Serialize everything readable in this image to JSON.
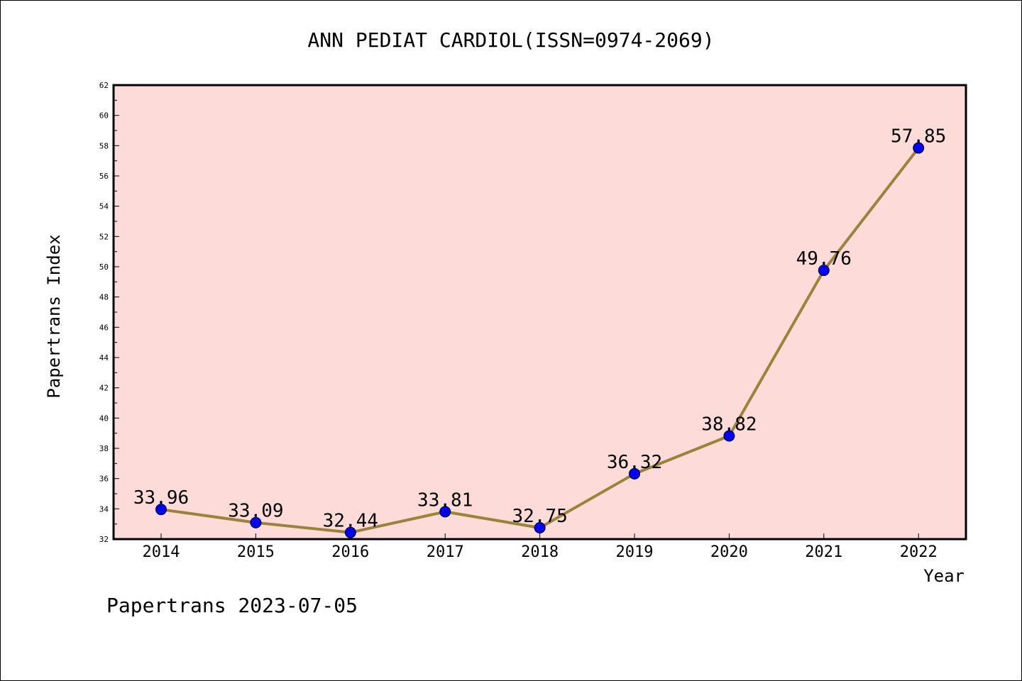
{
  "chart_data": {
    "type": "line",
    "title": "ANN PEDIAT CARDIOL(ISSN=0974-2069)",
    "xlabel": "Year",
    "ylabel": "Papertrans Index",
    "categories": [
      "2014",
      "2015",
      "2016",
      "2017",
      "2018",
      "2019",
      "2020",
      "2021",
      "2022"
    ],
    "series": [
      {
        "values": [
          33.96,
          33.09,
          32.44,
          33.81,
          32.75,
          36.32,
          38.82,
          49.76,
          57.85
        ],
        "labels": [
          "33.96",
          "33.09",
          "32.44",
          "33.81",
          "32.75",
          "36.32",
          "38.82",
          "49.76",
          "57.85"
        ]
      }
    ],
    "ylim": [
      32,
      62
    ],
    "yticks": [
      "32",
      "34",
      "36",
      "38",
      "40",
      "42",
      "44",
      "46",
      "48",
      "50",
      "52",
      "54",
      "56",
      "58",
      "60",
      "62"
    ],
    "grid": false,
    "colors": {
      "plot_background": "#fddbd8",
      "line": "#9b843a",
      "marker": "#0000ff"
    }
  },
  "footer": "Papertrans 2023-07-05"
}
